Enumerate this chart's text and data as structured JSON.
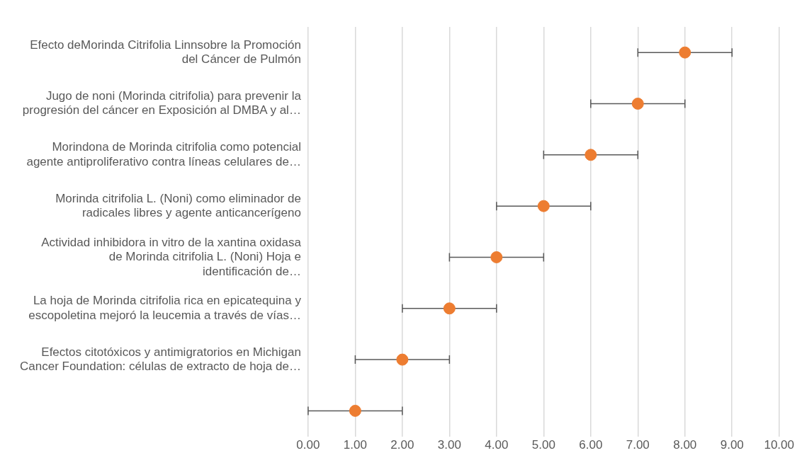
{
  "chart_data": {
    "type": "scatter",
    "orientation": "horizontal",
    "categories": [
      "Efecto deMorinda Citrifolia Linnsobre la Promoción del Cáncer de Pulmón",
      "Jugo de noni (Morinda citrifolia) para prevenir la progresión del cáncer en Exposición al DMBA y al…",
      "Morindona de Morinda citrifolia como potencial agente antiproliferativo contra líneas celulares de…",
      "Morinda citrifolia L. (Noni) como eliminador de radicales libres y agente anticancerígeno",
      "Actividad inhibidora in vitro de la xantina oxidasa de Morinda citrifolia L. (Noni) Hoja e identificación de…",
      "La hoja de Morinda citrifolia rica en epicatequina y escopoletina mejoró la leucemia a través de vías…",
      "Efectos citotóxicos y antimigratorios en Michigan Cancer Foundation: células de extracto de hoja de…",
      null
    ],
    "values": [
      8,
      7,
      6,
      5,
      4,
      3,
      2,
      1
    ],
    "errors": [
      1,
      1,
      1,
      1,
      1,
      1,
      1,
      1
    ],
    "color": "#ed7d31",
    "marker": "circle",
    "grid": "x",
    "xlim": [
      0,
      10
    ],
    "xticks": [
      {
        "value": 0,
        "label": "0.00"
      },
      {
        "value": 1,
        "label": "1.00"
      },
      {
        "value": 2,
        "label": "2.00"
      },
      {
        "value": 3,
        "label": "3.00"
      },
      {
        "value": 4,
        "label": "4.00"
      },
      {
        "value": 5,
        "label": "5.00"
      },
      {
        "value": 6,
        "label": "6.00"
      },
      {
        "value": 7,
        "label": "7.00"
      },
      {
        "value": 8,
        "label": "8.00"
      },
      {
        "value": 9,
        "label": "9.00"
      },
      {
        "value": 10,
        "label": "10.00"
      }
    ]
  }
}
